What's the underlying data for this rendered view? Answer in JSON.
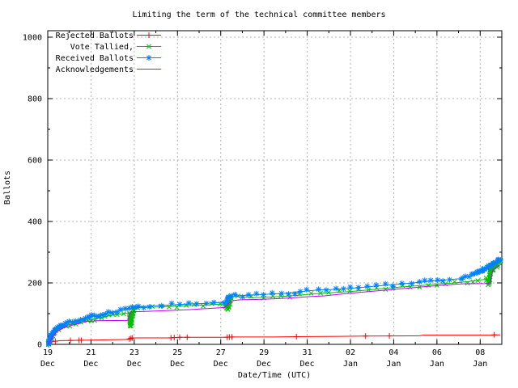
{
  "chart_data": {
    "type": "line",
    "title": "Limiting the term of the technical committee members",
    "xlabel": "Date/Time (UTC)",
    "ylabel": "Ballots",
    "ylim": [
      0,
      1000
    ],
    "xlim_days": [
      0,
      21
    ],
    "x_origin": "19 Dec 00:00 UTC",
    "grid": true,
    "legend_position": "top-left",
    "grid_color": "#b0b0b0",
    "y_ticks": [
      0,
      200,
      400,
      600,
      800,
      1000
    ],
    "x_ticks": [
      {
        "day": 0,
        "line1": "19",
        "line2": "Dec"
      },
      {
        "day": 2,
        "line1": "21",
        "line2": "Dec"
      },
      {
        "day": 4,
        "line1": "23",
        "line2": "Dec"
      },
      {
        "day": 6,
        "line1": "25",
        "line2": "Dec"
      },
      {
        "day": 8,
        "line1": "27",
        "line2": "Dec"
      },
      {
        "day": 10,
        "line1": "29",
        "line2": "Dec"
      },
      {
        "day": 12,
        "line1": "31",
        "line2": "Dec"
      },
      {
        "day": 14,
        "line1": "02",
        "line2": "Jan"
      },
      {
        "day": 16,
        "line1": "04",
        "line2": "Jan"
      },
      {
        "day": 18,
        "line1": "06",
        "line2": "Jan"
      },
      {
        "day": 20,
        "line1": "08",
        "line2": "Jan"
      }
    ],
    "series": [
      {
        "name": "Rejected Ballots",
        "color": "#ff0000",
        "marker": "plus",
        "marker_mode": "explicit",
        "marker_days": [
          0.35,
          1.05,
          1.45,
          1.55,
          3.78,
          3.85,
          3.92,
          5.7,
          5.85,
          6.1,
          6.45,
          8.3,
          8.4,
          8.52,
          11.5,
          14.7,
          15.8,
          20.65
        ],
        "points": [
          [
            0,
            0
          ],
          [
            0.1,
            5
          ],
          [
            0.3,
            10
          ],
          [
            0.6,
            12
          ],
          [
            1.2,
            13
          ],
          [
            2,
            14
          ],
          [
            3,
            15
          ],
          [
            3.74,
            16
          ],
          [
            3.82,
            19
          ],
          [
            3.92,
            21
          ],
          [
            5.6,
            21
          ],
          [
            5.85,
            22
          ],
          [
            6.1,
            23
          ],
          [
            8.25,
            23
          ],
          [
            8.45,
            24
          ],
          [
            10.5,
            24
          ],
          [
            11.5,
            25
          ],
          [
            13.5,
            26
          ],
          [
            14.6,
            27
          ],
          [
            17.2,
            28
          ],
          [
            17.35,
            30
          ],
          [
            20.55,
            30
          ],
          [
            20.65,
            31
          ],
          [
            20.93,
            31
          ]
        ]
      },
      {
        "name": "Vote Tallied,",
        "color": "#00c000",
        "marker": "cross",
        "marker_mode": "auto",
        "marker_dv": 2.8,
        "marker_dt": 0.5,
        "points": [
          [
            0,
            0
          ],
          [
            0.06,
            6
          ],
          [
            0.12,
            14
          ],
          [
            0.22,
            29
          ],
          [
            0.38,
            43
          ],
          [
            0.6,
            53
          ],
          [
            0.85,
            61
          ],
          [
            1.15,
            67
          ],
          [
            1.5,
            73
          ],
          [
            2,
            80
          ],
          [
            2.5,
            88
          ],
          [
            3,
            95
          ],
          [
            3.5,
            100
          ],
          [
            3.78,
            103
          ],
          [
            3.83,
            58
          ],
          [
            3.88,
            80
          ],
          [
            3.96,
            115
          ],
          [
            4.2,
            119
          ],
          [
            4.8,
            121
          ],
          [
            5.6,
            123
          ],
          [
            6.4,
            126
          ],
          [
            7.2,
            128
          ],
          [
            8,
            131
          ],
          [
            8.22,
            132
          ],
          [
            8.3,
            113
          ],
          [
            8.42,
            140
          ],
          [
            8.52,
            158
          ],
          [
            8.8,
            155
          ],
          [
            9.4,
            152
          ],
          [
            10,
            153
          ],
          [
            10.8,
            156
          ],
          [
            11.6,
            160
          ],
          [
            12.2,
            164
          ],
          [
            13,
            168
          ],
          [
            14,
            172
          ],
          [
            14.8,
            177
          ],
          [
            15.6,
            182
          ],
          [
            16.4,
            187
          ],
          [
            17.2,
            191
          ],
          [
            18,
            196
          ],
          [
            18.8,
            200
          ],
          [
            19.4,
            204
          ],
          [
            19.9,
            209
          ],
          [
            20.3,
            212
          ],
          [
            20.4,
            195
          ],
          [
            20.5,
            248
          ],
          [
            20.58,
            238
          ],
          [
            20.65,
            266
          ],
          [
            20.75,
            256
          ],
          [
            20.87,
            266
          ],
          [
            20.93,
            271
          ]
        ]
      },
      {
        "name": "Received Ballots",
        "color": "#0080ff",
        "marker": "asterisk",
        "marker_mode": "auto",
        "marker_dv": 2.2,
        "marker_dt": 0.4,
        "points": [
          [
            0,
            0
          ],
          [
            0.05,
            7
          ],
          [
            0.1,
            16
          ],
          [
            0.18,
            30
          ],
          [
            0.3,
            43
          ],
          [
            0.45,
            53
          ],
          [
            0.65,
            61
          ],
          [
            0.9,
            69
          ],
          [
            1.15,
            74
          ],
          [
            1.45,
            79
          ],
          [
            1.75,
            85
          ],
          [
            2.05,
            91
          ],
          [
            2.4,
            97
          ],
          [
            2.8,
            103
          ],
          [
            3.2,
            108
          ],
          [
            3.6,
            113
          ],
          [
            3.95,
            117
          ],
          [
            4.2,
            121
          ],
          [
            4.7,
            125
          ],
          [
            5.3,
            127
          ],
          [
            6.1,
            130
          ],
          [
            6.9,
            132
          ],
          [
            7.7,
            135
          ],
          [
            8.15,
            138
          ],
          [
            8.28,
            140
          ],
          [
            8.38,
            153
          ],
          [
            8.65,
            158
          ],
          [
            9.3,
            160
          ],
          [
            10,
            163
          ],
          [
            10.8,
            165
          ],
          [
            11.4,
            169
          ],
          [
            12,
            174
          ],
          [
            12.5,
            177
          ],
          [
            13.3,
            179
          ],
          [
            14,
            182
          ],
          [
            14.8,
            187
          ],
          [
            15.6,
            192
          ],
          [
            16.4,
            197
          ],
          [
            17.2,
            202
          ],
          [
            18,
            208
          ],
          [
            18.6,
            211
          ],
          [
            19.1,
            214
          ],
          [
            19.35,
            219
          ],
          [
            19.6,
            224
          ],
          [
            19.85,
            231
          ],
          [
            20.1,
            242
          ],
          [
            20.35,
            252
          ],
          [
            20.6,
            263
          ],
          [
            20.8,
            270
          ],
          [
            20.93,
            276
          ]
        ]
      },
      {
        "name": "Acknowledgements",
        "color": "#c000ff",
        "marker": "none",
        "marker_mode": "none",
        "points": [
          [
            0,
            0
          ],
          [
            0.06,
            5
          ],
          [
            0.12,
            11
          ],
          [
            0.22,
            25
          ],
          [
            0.38,
            39
          ],
          [
            0.6,
            49
          ],
          [
            0.85,
            57
          ],
          [
            1.15,
            63
          ],
          [
            1.5,
            69
          ],
          [
            1.85,
            75
          ],
          [
            2.3,
            77
          ],
          [
            3.7,
            78
          ],
          [
            3.78,
            96
          ],
          [
            3.86,
            106
          ],
          [
            4.5,
            107
          ],
          [
            5.5,
            110
          ],
          [
            6.5,
            113
          ],
          [
            7.5,
            117
          ],
          [
            8.2,
            120
          ],
          [
            8.4,
            136
          ],
          [
            8.6,
            143
          ],
          [
            8.9,
            145
          ],
          [
            9.6,
            146
          ],
          [
            10.4,
            148
          ],
          [
            11.2,
            151
          ],
          [
            12,
            155
          ],
          [
            12.8,
            158
          ],
          [
            13.6,
            164
          ],
          [
            14.4,
            169
          ],
          [
            15.2,
            174
          ],
          [
            16,
            179
          ],
          [
            16.8,
            184
          ],
          [
            17.6,
            189
          ],
          [
            18.2,
            192
          ],
          [
            18.7,
            195
          ],
          [
            19.2,
            197
          ],
          [
            20.45,
            198
          ],
          [
            20.52,
            220
          ],
          [
            20.6,
            245
          ],
          [
            20.75,
            251
          ],
          [
            20.93,
            259
          ]
        ]
      }
    ]
  }
}
